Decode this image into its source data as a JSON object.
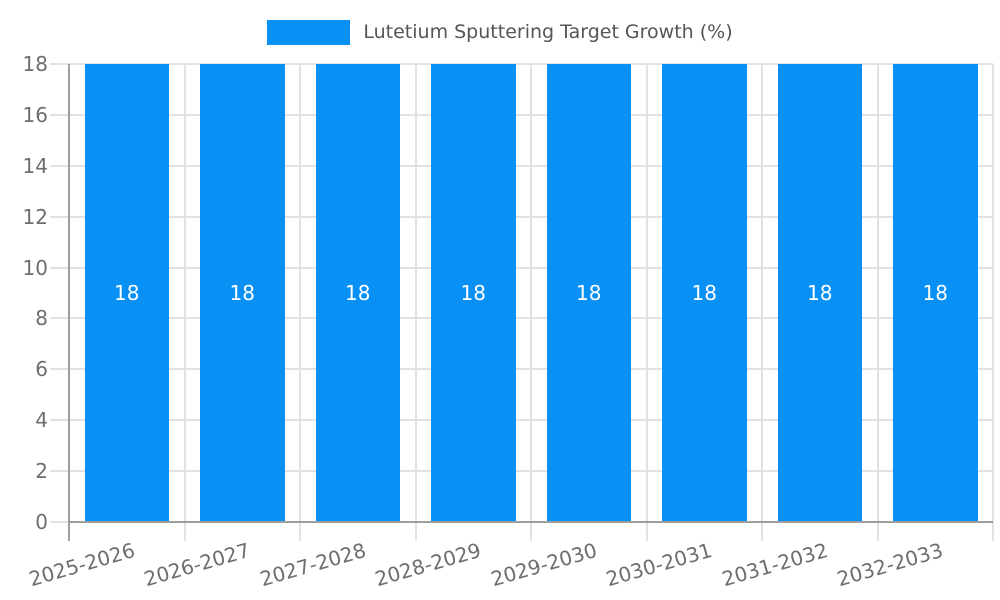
{
  "legend": {
    "label": "Lutetium Sputtering Target Growth (%)"
  },
  "chart_data": {
    "type": "bar",
    "title": "",
    "xlabel": "",
    "ylabel": "",
    "legend_position": "top",
    "grid": true,
    "categories": [
      "2025-2026",
      "2026-2027",
      "2027-2028",
      "2028-2029",
      "2029-2030",
      "2030-2031",
      "2031-2032",
      "2032-2033"
    ],
    "series": [
      {
        "name": "Lutetium Sputtering Target Growth (%)",
        "values": [
          18,
          18,
          18,
          18,
          18,
          18,
          18,
          18
        ]
      }
    ],
    "bar_value_labels": [
      "18",
      "18",
      "18",
      "18",
      "18",
      "18",
      "18",
      "18"
    ],
    "y_ticks": [
      0,
      2,
      4,
      6,
      8,
      10,
      12,
      14,
      16,
      18
    ],
    "ylim": [
      0,
      18
    ],
    "x_label_rotation_deg": -16,
    "colors": {
      "bar": "#0890F4",
      "bar_value_label": "#FFFFFF",
      "axis_line": "#9E9E9E",
      "grid_line": "#E2E2E2",
      "tick_label": "#6E6E6E",
      "legend_text": "#555555",
      "background": "#FFFFFF"
    }
  }
}
